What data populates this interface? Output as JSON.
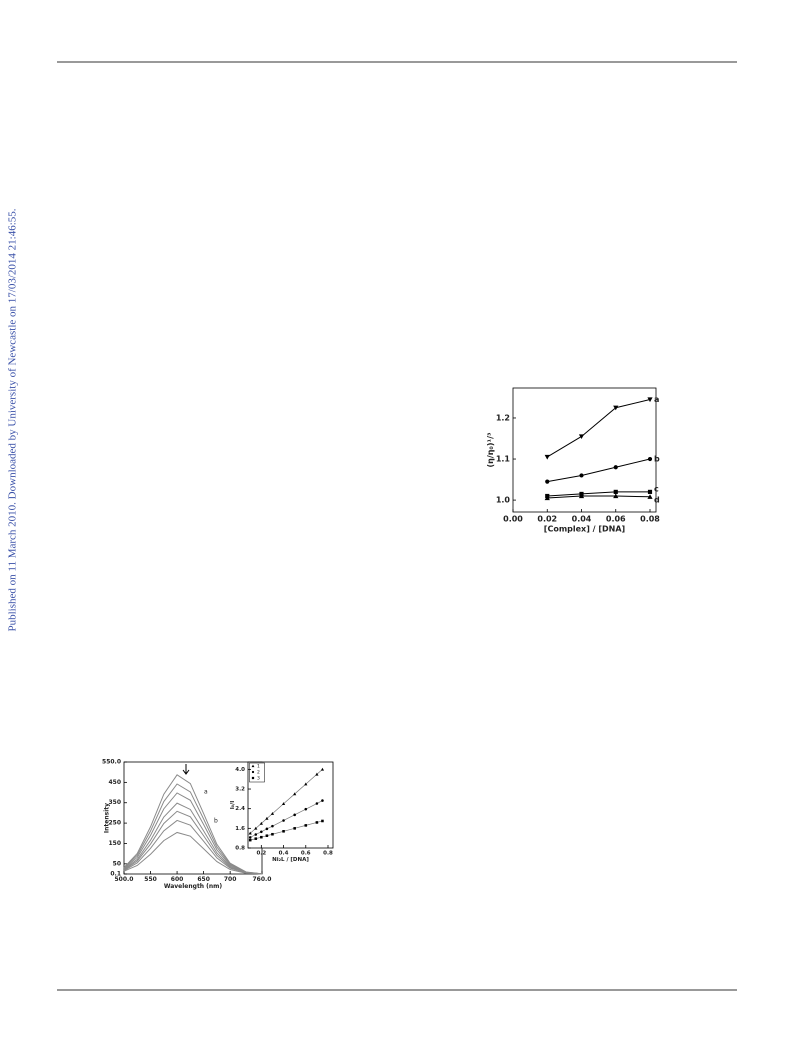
{
  "sidebar": "Published on 11 March 2010. Downloaded by University of Newcastle on 17/03/2014 21:46:55.",
  "chart_data": [
    {
      "type": "line",
      "xlabel": "[Complex] / [DNA]",
      "ylabel": "(η/η₀)¹/³",
      "x": [
        0.02,
        0.04,
        0.06,
        0.08
      ],
      "series": [
        {
          "name": "a",
          "color": "#000000",
          "marker": "triangle-down",
          "values": [
            1.105,
            1.155,
            1.225,
            1.245
          ]
        },
        {
          "name": "b",
          "color": "#000000",
          "marker": "circle",
          "values": [
            1.045,
            1.06,
            1.08,
            1.1
          ]
        },
        {
          "name": "c",
          "color": "#000000",
          "marker": "square",
          "values": [
            1.01,
            1.015,
            1.02,
            1.02
          ]
        },
        {
          "name": "d",
          "color": "#000000",
          "marker": "triangle-up",
          "values": [
            1.005,
            1.01,
            1.01,
            1.008
          ]
        }
      ],
      "xlim": [
        0,
        0.0835
      ],
      "ylim": [
        0.971,
        1.273
      ],
      "xticks": [
        {
          "value": 0,
          "label": "0.00"
        },
        0.02,
        0.04,
        0.06,
        0.08
      ],
      "yticks": [
        {
          "value": 1,
          "label": "1.0"
        },
        1.1,
        1.2
      ]
    },
    {
      "type": "line",
      "xlabel": "Wavelength (nm)",
      "ylabel": "Intensity",
      "x": [
        500,
        525,
        550,
        575,
        600,
        625,
        650,
        675,
        700,
        730,
        760
      ],
      "series": [
        {
          "color": "#8a8a8a",
          "values": [
            32,
            101,
            232,
            392,
            487,
            444,
            297,
            146,
            53,
            10,
            1
          ]
        },
        {
          "color": "#8a8a8a",
          "values": [
            29,
            92,
            211,
            356,
            442,
            403,
            270,
            133,
            48,
            9,
            1
          ]
        },
        {
          "color": "#8a8a8a",
          "values": [
            26,
            82,
            190,
            320,
            398,
            362,
            243,
            119,
            43,
            8,
            1
          ]
        },
        {
          "color": "#8a8a8a",
          "values": [
            23,
            72,
            166,
            280,
            348,
            317,
            212,
            104,
            38,
            7,
            1
          ]
        },
        {
          "color": "#8a8a8a",
          "values": [
            20,
            64,
            147,
            248,
            308,
            281,
            188,
            92,
            33,
            7,
            1
          ]
        },
        {
          "color": "#8a8a8a",
          "values": [
            17,
            55,
            126,
            212,
            263,
            240,
            161,
            79,
            29,
            6,
            1
          ]
        },
        {
          "color": "#8a8a8a",
          "values": [
            14,
            42,
            97,
            164,
            204,
            186,
            124,
            61,
            22,
            4,
            1
          ]
        }
      ],
      "annotations": [
        "a",
        "b"
      ],
      "xlim": [
        500,
        760
      ],
      "ylim": [
        0.1,
        550
      ],
      "xticks": [
        {
          "value": 500,
          "label": "500.0"
        },
        550,
        600,
        650,
        700,
        {
          "value": 760,
          "label": "760.0"
        }
      ],
      "yticks": [
        0.1,
        50,
        150,
        250,
        350,
        450,
        {
          "value": 550,
          "label": "550.0"
        }
      ]
    },
    {
      "type": "scatter",
      "xlabel": "Ni₂L / [DNA]",
      "ylabel": "I₀/I",
      "x": [
        0.1,
        0.15,
        0.2,
        0.25,
        0.3,
        0.4,
        0.5,
        0.6,
        0.7,
        0.75
      ],
      "series": [
        {
          "name": "1",
          "color": "#000000",
          "marker": "triangle-up",
          "values": [
            1.4,
            1.6,
            1.8,
            2.0,
            2.2,
            2.6,
            3.0,
            3.4,
            3.8,
            4.0
          ]
        },
        {
          "name": "2",
          "color": "#000000",
          "marker": "circle",
          "values": [
            1.23,
            1.35,
            1.46,
            1.58,
            1.69,
            1.92,
            2.15,
            2.38,
            2.61,
            2.73
          ]
        },
        {
          "name": "3",
          "color": "#000000",
          "marker": "square",
          "values": [
            1.12,
            1.18,
            1.24,
            1.3,
            1.36,
            1.48,
            1.6,
            1.72,
            1.84,
            1.9
          ]
        }
      ],
      "xlim": [
        0.08,
        0.845
      ],
      "ylim": [
        0.8,
        4.3
      ],
      "xticks": [
        0.2,
        0.4,
        0.6,
        0.8
      ],
      "yticks": [
        {
          "value": 0.8,
          "label": "0.8"
        },
        1.6,
        2.4,
        3.2,
        {
          "value": 4,
          "label": "4.0"
        }
      ]
    }
  ]
}
